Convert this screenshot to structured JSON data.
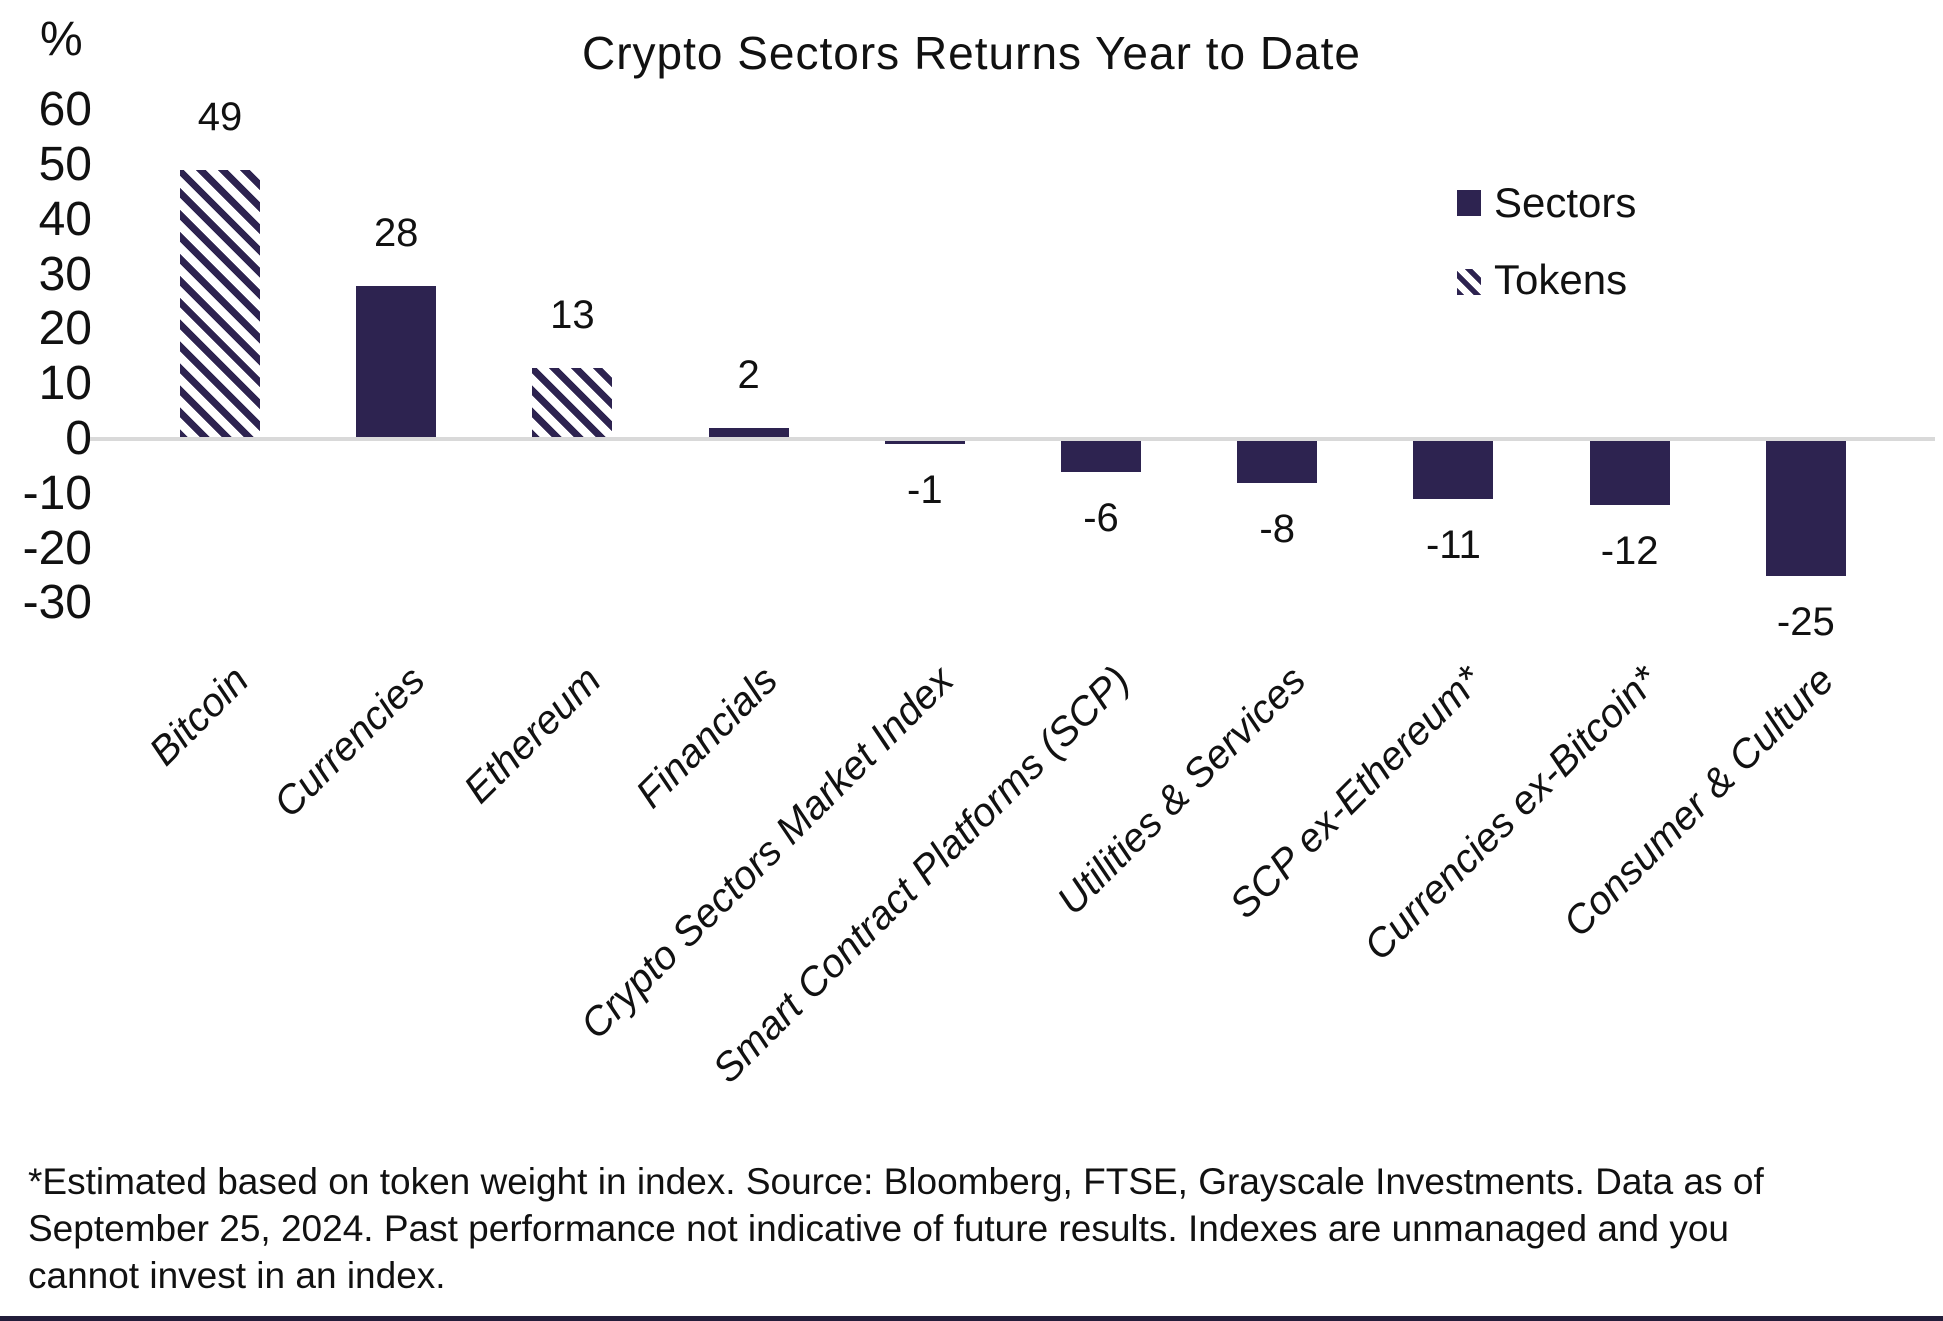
{
  "title": "Crypto Sectors Returns Year to Date",
  "y_axis": {
    "unit_label": "%",
    "ticks": [
      60,
      50,
      40,
      30,
      20,
      10,
      0,
      -10,
      -20,
      -30
    ]
  },
  "legend": {
    "items": [
      {
        "label": "Sectors",
        "style": "solid"
      },
      {
        "label": "Tokens",
        "style": "hatched"
      }
    ]
  },
  "chart_data": {
    "type": "bar",
    "title": "Crypto Sectors Returns Year to Date",
    "xlabel": "",
    "ylabel": "%",
    "ylim": [
      -30,
      60
    ],
    "grid": false,
    "legend_position": "upper right",
    "categories": [
      "Bitcoin",
      "Currencies",
      "Ethereum",
      "Financials",
      "Crypto Sectors Market Index",
      "Smart Contract Platforms (SCP)",
      "Utilities & Services",
      "SCP ex-Ethereum*",
      "Currencies ex-Bitcoin*",
      "Consumer & Culture"
    ],
    "values": [
      49,
      28,
      13,
      2,
      -1,
      -6,
      -8,
      -11,
      -12,
      -25
    ],
    "bar_styles": [
      "hatched",
      "solid",
      "hatched",
      "solid",
      "solid",
      "solid",
      "solid",
      "solid",
      "solid",
      "solid"
    ],
    "value_labels": [
      "49",
      "28",
      "13",
      "2",
      "-1",
      "-6",
      "-8",
      "-11",
      "-12",
      "-25"
    ]
  },
  "footnote_lines": [
    "*Estimated based on token weight in index. Source: Bloomberg, FTSE, Grayscale Investments. Data as of",
    "September 25, 2024. Past performance not indicative of future results. Indexes are unmanaged and you",
    "cannot invest in an index."
  ],
  "colors": {
    "bar": "#2d2350",
    "zero_line": "#d9d9d9",
    "bottom_rule": "#221d3a",
    "background": "#ffffff"
  }
}
